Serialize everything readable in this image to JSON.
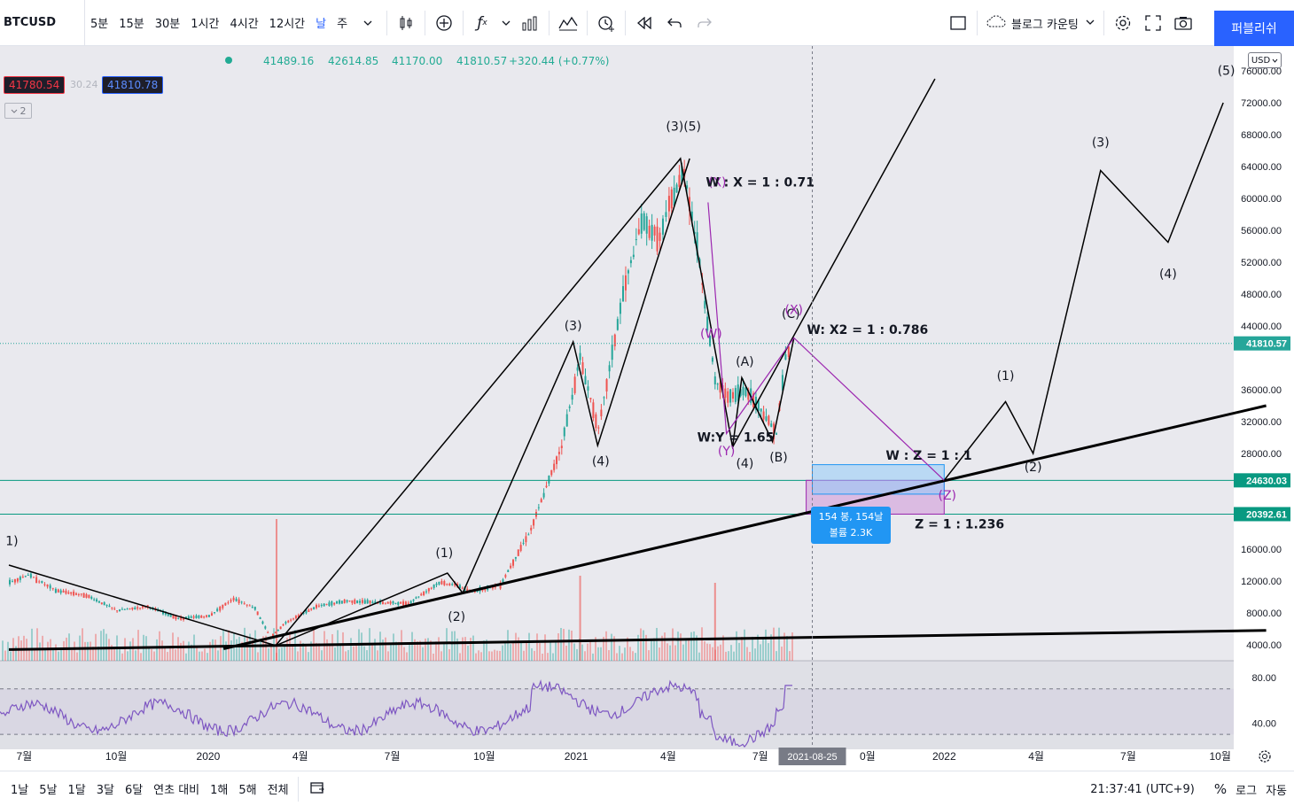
{
  "toolbar": {
    "symbol": "BTCUSD",
    "intervals": [
      "5분",
      "15분",
      "30분",
      "1시간",
      "4시간",
      "12시간",
      "날",
      "주"
    ],
    "active_interval": "날",
    "layout_name": "블로그 카운팅",
    "publish_label": "퍼블리쉬"
  },
  "legend": {
    "open": "41489.16",
    "high": "42614.85",
    "low": "41170.00",
    "close": "41810.57",
    "change": "+320.44 (+0.77%)",
    "bid": "41780.54",
    "spread": "30.24",
    "ask": "41810.78",
    "indicator_toggle": "2"
  },
  "currency_label": "USD",
  "bottombar": {
    "ranges": [
      "1날",
      "5날",
      "1달",
      "3달",
      "6달",
      "연초 대비",
      "1해",
      "5해",
      "전체"
    ],
    "time": "21:37:41 (UTC+9)",
    "percent": "%",
    "log": "로그",
    "auto": "자동"
  },
  "chart_data": {
    "type": "candlestick",
    "symbol": "BTCUSD",
    "interval": "1D",
    "price_axis_ticks": [
      4000,
      8000,
      12000,
      16000,
      20000,
      24000,
      28000,
      32000,
      36000,
      40000,
      44000,
      48000,
      52000,
      56000,
      60000,
      64000,
      68000,
      72000,
      76000
    ],
    "price_axis_labels": [
      "4000.00",
      "8000.00",
      "12000.00",
      "16000.00",
      "",
      "",
      "28000.00",
      "32000.00",
      "36000.00",
      "",
      "44000.00",
      "48000.00",
      "52000.00",
      "56000.00",
      "60000.00",
      "64000.00",
      "68000.00",
      "72000.00",
      "76000.00"
    ],
    "price_tags": [
      {
        "value": 41810.57,
        "label": "41810.57",
        "color": "#26a69a"
      },
      {
        "value": 24630.03,
        "label": "24630.03",
        "color": "#089981"
      },
      {
        "value": 20392.61,
        "label": "20392.61",
        "color": "#089981"
      }
    ],
    "time_axis_labels": [
      {
        "label": "7월",
        "t": 0.5
      },
      {
        "label": "10월",
        "t": 3.5
      },
      {
        "label": "2020",
        "t": 6.5
      },
      {
        "label": "4월",
        "t": 9.5
      },
      {
        "label": "7월",
        "t": 12.5
      },
      {
        "label": "10월",
        "t": 15.5
      },
      {
        "label": "2021",
        "t": 18.5
      },
      {
        "label": "4월",
        "t": 21.5
      },
      {
        "label": "7월",
        "t": 24.5
      },
      {
        "label": "0월",
        "t": 28.0
      },
      {
        "label": "2022",
        "t": 30.5
      },
      {
        "label": "4월",
        "t": 33.5
      },
      {
        "label": "7월",
        "t": 36.5
      },
      {
        "label": "10월",
        "t": 39.5
      }
    ],
    "crosshair_date": "2021-08-25",
    "crosshair_t": 26.2,
    "price_path": [
      {
        "t": 0.0,
        "p": 11800
      },
      {
        "t": 0.6,
        "p": 12800
      },
      {
        "t": 1.5,
        "p": 10800
      },
      {
        "t": 2.5,
        "p": 10200
      },
      {
        "t": 3.5,
        "p": 8300
      },
      {
        "t": 4.5,
        "p": 8800
      },
      {
        "t": 5.5,
        "p": 7300
      },
      {
        "t": 6.5,
        "p": 7600
      },
      {
        "t": 7.3,
        "p": 9800
      },
      {
        "t": 8.0,
        "p": 8600
      },
      {
        "t": 8.5,
        "p": 4900
      },
      {
        "t": 9.0,
        "p": 6800
      },
      {
        "t": 10.0,
        "p": 8800
      },
      {
        "t": 11.0,
        "p": 9500
      },
      {
        "t": 12.0,
        "p": 9300
      },
      {
        "t": 13.0,
        "p": 9200
      },
      {
        "t": 14.0,
        "p": 11800
      },
      {
        "t": 14.6,
        "p": 11500
      },
      {
        "t": 15.0,
        "p": 10600
      },
      {
        "t": 16.0,
        "p": 11500
      },
      {
        "t": 17.0,
        "p": 18500
      },
      {
        "t": 18.0,
        "p": 29000
      },
      {
        "t": 18.6,
        "p": 40000
      },
      {
        "t": 19.2,
        "p": 31000
      },
      {
        "t": 20.0,
        "p": 48000
      },
      {
        "t": 20.6,
        "p": 57000
      },
      {
        "t": 21.2,
        "p": 55000
      },
      {
        "t": 21.5,
        "p": 59000
      },
      {
        "t": 22.0,
        "p": 63500
      },
      {
        "t": 22.5,
        "p": 52000
      },
      {
        "t": 23.0,
        "p": 37000
      },
      {
        "t": 23.5,
        "p": 35000
      },
      {
        "t": 24.0,
        "p": 36000
      },
      {
        "t": 24.5,
        "p": 33500
      },
      {
        "t": 25.0,
        "p": 30500
      },
      {
        "t": 25.3,
        "p": 40000
      },
      {
        "t": 25.5,
        "p": 41810
      }
    ],
    "volume_spikes": [
      {
        "t": 8.7,
        "v": 1.0
      },
      {
        "t": 18.6,
        "v": 0.6
      },
      {
        "t": 23.0,
        "v": 0.55
      }
    ],
    "wave_lines": [
      {
        "name": "primary-impulse",
        "points": [
          {
            "t": 8.7,
            "p": 3900
          },
          {
            "t": 21.9,
            "p": 65000
          },
          {
            "t": 23.6,
            "p": 28800
          },
          {
            "t": 30.2,
            "p": 75000
          }
        ]
      },
      {
        "name": "minor-impulse",
        "points": [
          {
            "t": 8.7,
            "p": 3900
          },
          {
            "t": 14.3,
            "p": 13000
          },
          {
            "t": 14.8,
            "p": 10500
          },
          {
            "t": 18.4,
            "p": 42000
          },
          {
            "t": 19.2,
            "p": 29000
          },
          {
            "t": 22.2,
            "p": 65000
          }
        ]
      },
      {
        "name": "projection",
        "points": [
          {
            "t": 30.5,
            "p": 24630
          },
          {
            "t": 32.5,
            "p": 34500
          },
          {
            "t": 33.4,
            "p": 28000
          },
          {
            "t": 35.6,
            "p": 63500
          },
          {
            "t": 37.8,
            "p": 54500
          },
          {
            "t": 39.6,
            "p": 72000
          }
        ]
      },
      {
        "name": "abc-correction",
        "points": [
          {
            "t": 23.6,
            "p": 28800
          },
          {
            "t": 23.9,
            "p": 37500
          },
          {
            "t": 24.9,
            "p": 29500
          },
          {
            "t": 25.6,
            "p": 42500
          }
        ]
      },
      {
        "name": "early-decline",
        "points": [
          {
            "t": 0.0,
            "p": 14000
          },
          {
            "t": 8.7,
            "p": 3900
          }
        ]
      }
    ],
    "purple_lines": [
      {
        "points": [
          {
            "t": 22.8,
            "p": 59500
          },
          {
            "t": 23.4,
            "p": 30500
          },
          {
            "t": 25.6,
            "p": 42500
          },
          {
            "t": 30.5,
            "p": 24630
          }
        ]
      }
    ],
    "trend_lines": [
      {
        "from": {
          "t": 7.0,
          "p": 3500
        },
        "to": {
          "t": 41.0,
          "p": 34000
        }
      },
      {
        "from": {
          "t": 0.0,
          "p": 3400
        },
        "to": {
          "t": 41.0,
          "p": 5800
        }
      }
    ],
    "boxes": [
      {
        "t1": 26.0,
        "t2": 30.5,
        "p1": 24630,
        "p2": 20392,
        "color": "purple"
      },
      {
        "t1": 26.2,
        "t2": 30.5,
        "p1": 26600,
        "p2": 22900,
        "color": "blue"
      }
    ],
    "labels": [
      {
        "text": "(3)(5)",
        "t": 22.0,
        "p": 68500,
        "color": "#131722"
      },
      {
        "text": "(X)",
        "t": 23.1,
        "p": 61500,
        "color": "#9c27b0"
      },
      {
        "text": "W : X = 1 : 0.71",
        "t": 24.5,
        "p": 61500,
        "color": "#131722"
      },
      {
        "text": "(W)",
        "t": 22.9,
        "p": 42500,
        "color": "#9c27b0"
      },
      {
        "text": "(3)",
        "t": 18.4,
        "p": 43500,
        "color": "#131722"
      },
      {
        "text": "(4)",
        "t": 19.3,
        "p": 26500,
        "color": "#131722"
      },
      {
        "text": "(1)",
        "t": 14.2,
        "p": 15000,
        "color": "#131722"
      },
      {
        "text": "(2)",
        "t": 14.6,
        "p": 7000,
        "color": "#131722"
      },
      {
        "text": "1)",
        "t": 0.1,
        "p": 16500,
        "color": "#131722"
      },
      {
        "text": "(A)",
        "t": 24.0,
        "p": 39000,
        "color": "#131722"
      },
      {
        "text": "W:Y = 1.65",
        "t": 23.7,
        "p": 29500,
        "color": "#131722"
      },
      {
        "text": "(Y)",
        "t": 23.4,
        "p": 27800,
        "color": "#9c27b0"
      },
      {
        "text": "(4)",
        "t": 24.0,
        "p": 26200,
        "color": "#131722"
      },
      {
        "text": "(B)",
        "t": 25.1,
        "p": 27000,
        "color": "#131722"
      },
      {
        "text": "(C)",
        "t": 25.5,
        "p": 45000,
        "color": "#131722"
      },
      {
        "text": "(X)",
        "t": 25.6,
        "p": 45500,
        "color": "#9c27b0"
      },
      {
        "text": "W: X2 = 1 : 0.786",
        "t": 28.0,
        "p": 43000,
        "color": "#131722"
      },
      {
        "text": "W : Z = 1 : 1",
        "t": 30.0,
        "p": 27200,
        "color": "#131722"
      },
      {
        "text": "(Z)",
        "t": 30.6,
        "p": 22200,
        "color": "#9c27b0"
      },
      {
        "text": "Z = 1 : 1.236",
        "t": 31.0,
        "p": 18600,
        "color": "#131722"
      },
      {
        "text": "(1)",
        "t": 32.5,
        "p": 37200,
        "color": "#131722"
      },
      {
        "text": "(2)",
        "t": 33.4,
        "p": 25800,
        "color": "#131722"
      },
      {
        "text": "(3)",
        "t": 35.6,
        "p": 66500,
        "color": "#131722"
      },
      {
        "text": "(4)",
        "t": 37.8,
        "p": 50000,
        "color": "#131722"
      },
      {
        "text": "(5)",
        "t": 39.7,
        "p": 75500,
        "color": "#131722"
      }
    ],
    "measure_tooltip": {
      "line1": "154 봉, 154날",
      "line2": "볼륨 2.3K"
    },
    "rsi": {
      "levels": [
        70,
        30
      ],
      "axis_labels": [
        "80.00",
        "40.00"
      ],
      "last": 73
    }
  }
}
